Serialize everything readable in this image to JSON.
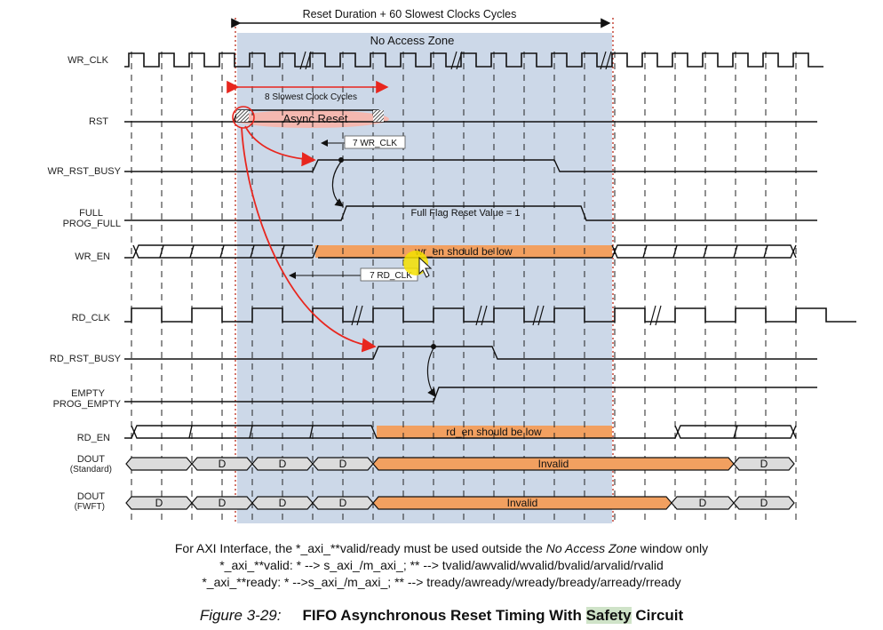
{
  "top_span_label": "Reset Duration + 60 Slowest Clocks Cycles",
  "zone_label": "No Access Zone",
  "slow_clock_span_label": "8 Slowest Clock Cycles",
  "async_reset_label": "Async Reset",
  "wr_clk_delay_label": "7 WR_CLK",
  "rd_clk_delay_label": "7 RD_CLK",
  "full_flag_label": "Full Flag Reset Value = 1",
  "wr_en_low_label": "wr_en should be low",
  "rd_en_low_label": "rd_en should be low",
  "data_cell_label": "D",
  "invalid_label": "Invalid",
  "signals": {
    "wr_clk": "WR_CLK",
    "rst": "RST",
    "wr_rst_busy": "WR_RST_BUSY",
    "full": "FULL",
    "prog_full": "PROG_FULL",
    "wr_en": "WR_EN",
    "rd_clk": "RD_CLK",
    "rd_rst_busy": "RD_RST_BUSY",
    "empty": "EMPTY",
    "prog_empty": "PROG_EMPTY",
    "rd_en": "RD_EN",
    "dout_std": "DOUT",
    "dout_std_sub": "(Standard)",
    "dout_fwft": "DOUT",
    "dout_fwft_sub": "(FWFT)"
  },
  "notes": {
    "line1_a": "For AXI Interface, the *_axi_**valid/ready must be used outside the ",
    "line1_em": "No Access Zone",
    "line1_b": " window only",
    "line2": "*_axi_**valid: * --> s_axi_/m_axi_; ** --> tvalid/awvalid/wvalid/bvalid/arvalid/rvalid",
    "line3": "*_axi_**ready: * -->s_axi_/m_axi_; ** --> tready/awready/wready/bready/arready/rready"
  },
  "caption": {
    "figure": "Figure 3-29:",
    "title_a": "FIFO Asynchronous Reset Timing With ",
    "title_hl": "Safety",
    "title_b": " Circuit"
  },
  "colors": {
    "zone": "#ccd8e8",
    "highlight_orange": "#f2a060",
    "highlight_pink": "#f4b8b0",
    "arrow_red": "#e8261e",
    "dout_gray": "#dcdcdc",
    "cursor_yellow": "#f5e000"
  }
}
